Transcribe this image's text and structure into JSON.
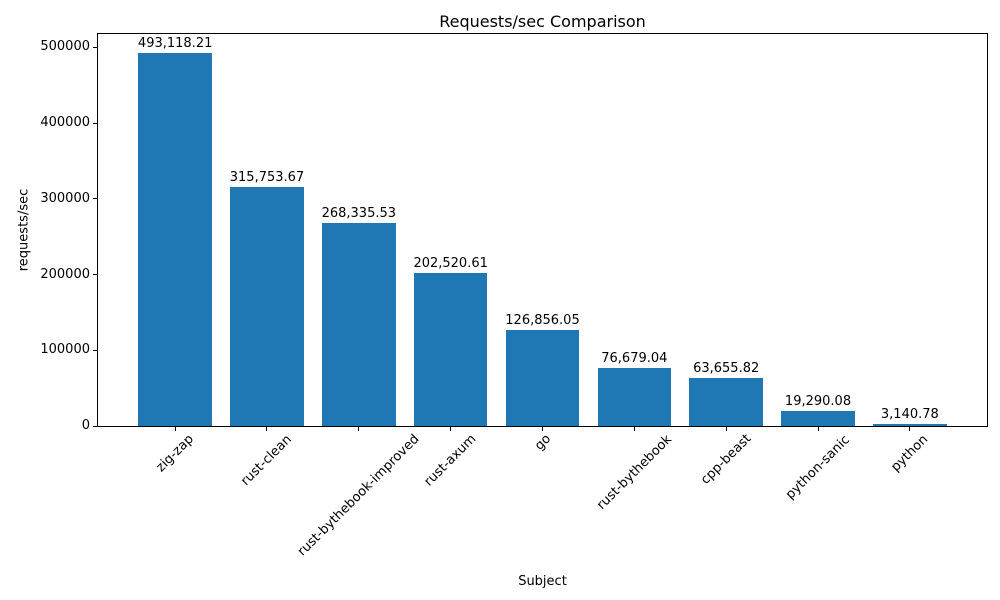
{
  "chart_data": {
    "type": "bar",
    "title": "Requests/sec Comparison",
    "xlabel": "Subject",
    "ylabel": "requests/sec",
    "categories": [
      "zig-zap",
      "rust-clean",
      "rust-bythebook-improved",
      "rust-axum",
      "go",
      "rust-bythebook",
      "cpp-beast",
      "python-sanic",
      "python"
    ],
    "values": [
      493118.21,
      315753.67,
      268335.53,
      202520.61,
      126856.05,
      76679.04,
      63655.82,
      19290.08,
      3140.78
    ],
    "value_labels": [
      "493,118.21",
      "315,753.67",
      "268,335.53",
      "202,520.61",
      "126,856.05",
      "76,679.04",
      "63,655.82",
      "19,290.08",
      "3,140.78"
    ],
    "yticks": [
      0,
      100000,
      200000,
      300000,
      400000,
      500000
    ],
    "ytick_labels": [
      "0",
      "100000",
      "200000",
      "300000",
      "400000",
      "500000"
    ],
    "ylim": [
      0,
      517774
    ],
    "bar_color": "#1f77b4",
    "text_color": "#000000",
    "grid": false,
    "legend": null,
    "bar_width_fraction": 0.8,
    "xtick_rotation_deg": 45
  }
}
